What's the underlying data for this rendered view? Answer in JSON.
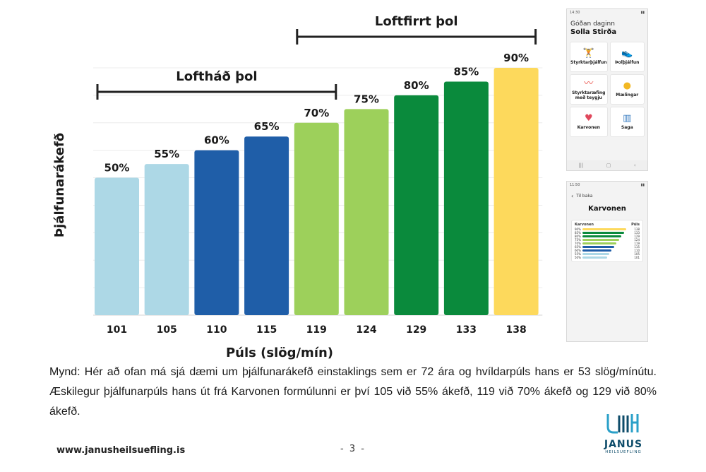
{
  "chart_data": {
    "type": "bar",
    "categories": [
      "101",
      "105",
      "110",
      "115",
      "119",
      "124",
      "129",
      "133",
      "138"
    ],
    "values": [
      50,
      55,
      60,
      65,
      70,
      75,
      80,
      85,
      90
    ],
    "value_labels": [
      "50%",
      "55%",
      "60%",
      "65%",
      "70%",
      "75%",
      "80%",
      "85%",
      "90%"
    ],
    "colors": [
      "#add8e6",
      "#add8e6",
      "#1f5ea8",
      "#1f5ea8",
      "#9dd05b",
      "#9dd05b",
      "#0a8a3c",
      "#0a8a3c",
      "#fdd95c"
    ],
    "xlabel": "Púls (slög/mín)",
    "ylabel": "Þjálfunarákefð",
    "ylim": [
      0,
      100
    ],
    "grid": true,
    "brackets": [
      {
        "label": "Loftháð þol",
        "from": 0,
        "to": 4
      },
      {
        "label": "Loftfirrt þol",
        "from": 4,
        "to": 8
      }
    ]
  },
  "phone_home": {
    "status_time": "14:30",
    "greeting": "Góðan daginn",
    "user_name": "Solla Stirða",
    "tiles": [
      {
        "label": "Styrktarþjálfun",
        "icon": "dumbbell-icon",
        "glyph": "🏋",
        "color": "#1f5ea8"
      },
      {
        "label": "Þolþjálfun",
        "icon": "shoe-icon",
        "glyph": "👟",
        "color": "#2fa84f"
      },
      {
        "label": "Styrktaræfing með teygju",
        "icon": "band-icon",
        "glyph": "〰",
        "color": "#e8453c"
      },
      {
        "label": "Mælingar",
        "icon": "coins-icon",
        "glyph": "●",
        "color": "#f2b823"
      },
      {
        "label": "Karvonen",
        "icon": "heart-icon",
        "glyph": "♥",
        "color": "#e0485c"
      },
      {
        "label": "Saga",
        "icon": "bar-chart-icon",
        "glyph": "▥",
        "color": "#3d7fc2"
      }
    ]
  },
  "phone_karvonen": {
    "status_time": "11:50",
    "back_label": "Til baka",
    "title": "Karvonen",
    "col_left": "Karvonen",
    "col_right": "Púls",
    "rows": [
      {
        "pct": "90%",
        "pulse": "138",
        "color": "#fdd95c",
        "fill": 0.9
      },
      {
        "pct": "85%",
        "pulse": "133",
        "color": "#0a8a3c",
        "fill": 0.85
      },
      {
        "pct": "80%",
        "pulse": "129",
        "color": "#0a8a3c",
        "fill": 0.8
      },
      {
        "pct": "75%",
        "pulse": "124",
        "color": "#9dd05b",
        "fill": 0.75
      },
      {
        "pct": "70%",
        "pulse": "119",
        "color": "#9dd05b",
        "fill": 0.7
      },
      {
        "pct": "65%",
        "pulse": "115",
        "color": "#1f5ea8",
        "fill": 0.65
      },
      {
        "pct": "60%",
        "pulse": "110",
        "color": "#1f5ea8",
        "fill": 0.6
      },
      {
        "pct": "55%",
        "pulse": "105",
        "color": "#add8e6",
        "fill": 0.55
      },
      {
        "pct": "50%",
        "pulse": "101",
        "color": "#add8e6",
        "fill": 0.5
      }
    ]
  },
  "caption": "Mynd: Hér að ofan má sjá dæmi um þjálfunarákefð einstaklings sem er 72 ára og hvíldarpúls hans er 53 slög/mínútu. Æskilegur þjálfunarpúls hans út frá Karvonen formúlunni er því 105 við 55% ákefð, 119 við 70% ákefð og 129 við 80% ákefð.",
  "footer": {
    "website": "www.janusheilsuefling.is",
    "page": "- 3 -",
    "logo_name": "JANUS",
    "logo_sub": "HEILSUEFLING",
    "logo_color": "#0e4c6a",
    "logo_accent": "#2aa0c8"
  }
}
